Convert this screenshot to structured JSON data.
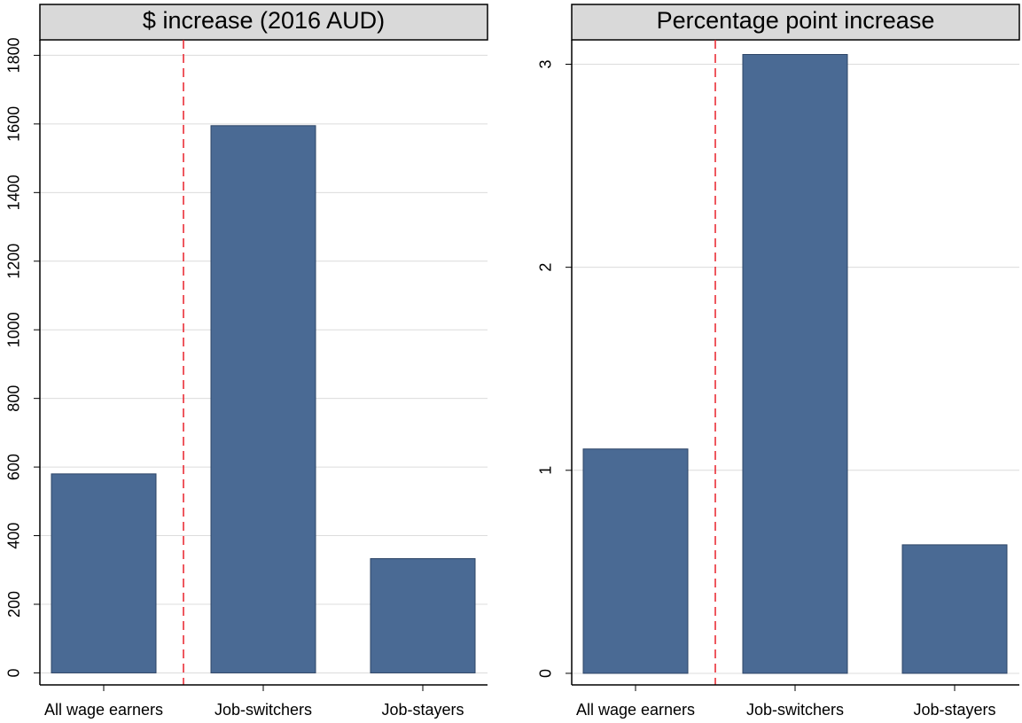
{
  "chart_data": [
    {
      "type": "bar",
      "title": "$ increase (2016 AUD)",
      "categories": [
        "All wage earners",
        "Job-switchers",
        "Job-stayers"
      ],
      "values": [
        580,
        1595,
        333
      ],
      "color": "#4a6a94",
      "ylim": [
        -35,
        1845
      ],
      "yticks": [
        0,
        200,
        400,
        600,
        800,
        1000,
        1200,
        1400,
        1600,
        1800
      ],
      "grid": true
    },
    {
      "type": "bar",
      "title": "Percentage point increase",
      "categories": [
        "All wage earners",
        "Job-switchers",
        "Job-stayers"
      ],
      "values": [
        1.105,
        3.048,
        0.633
      ],
      "color": "#4a6a94",
      "ylim": [
        -0.057,
        3.12
      ],
      "yticks": [
        0,
        1,
        2,
        3
      ],
      "grid": true
    }
  ]
}
